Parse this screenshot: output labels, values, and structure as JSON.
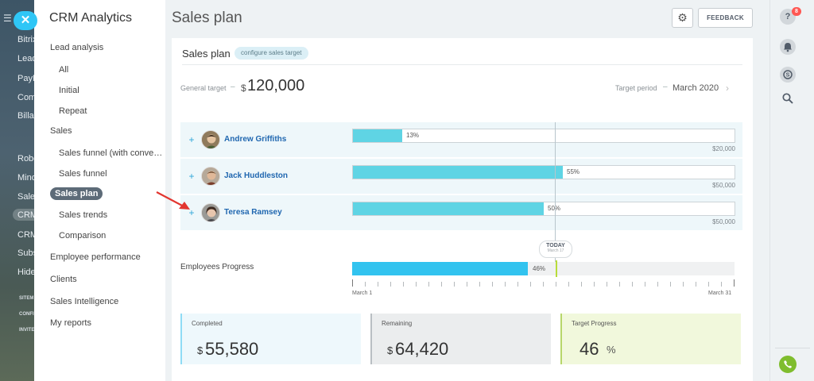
{
  "background": {
    "items": [
      "Bitrix",
      "Lead",
      "PayP",
      "Com",
      "Billa",
      "Robo",
      "Mino",
      "Sales",
      "CRM",
      "CRM",
      "Subs",
      "Hide"
    ],
    "small_items": [
      "SITEM",
      "CONFI",
      "INVITE"
    ]
  },
  "nav": {
    "title": "CRM Analytics",
    "items": [
      {
        "label": "Lead analysis",
        "level": "top"
      },
      {
        "label": "All",
        "level": "sub"
      },
      {
        "label": "Initial",
        "level": "sub"
      },
      {
        "label": "Repeat",
        "level": "sub"
      },
      {
        "label": "Sales",
        "level": "top"
      },
      {
        "label": "Sales funnel (with conve…",
        "level": "sub"
      },
      {
        "label": "Sales funnel",
        "level": "sub"
      },
      {
        "label": "Sales plan",
        "level": "active"
      },
      {
        "label": "Sales trends",
        "level": "sub"
      },
      {
        "label": "Comparison",
        "level": "sub"
      },
      {
        "label": "Employee performance",
        "level": "top"
      },
      {
        "label": "Clients",
        "level": "top"
      },
      {
        "label": "Sales Intelligence",
        "level": "top"
      },
      {
        "label": "My reports",
        "level": "top"
      }
    ]
  },
  "header": {
    "title": "Sales plan",
    "feedback_label": "FEEDBACK"
  },
  "card": {
    "title": "Sales plan",
    "configure_label": "configure sales target",
    "general_target_label": "General target",
    "general_target_currency": "$",
    "general_target_value": "120,000",
    "target_period_label": "Target period",
    "target_period_value": "March 2020"
  },
  "employees": [
    {
      "name": "Andrew Griffiths",
      "percent": 13,
      "percent_label": "13%",
      "target": "$20,000"
    },
    {
      "name": "Jack Huddleston",
      "percent": 55,
      "percent_label": "55%",
      "target": "$50,000"
    },
    {
      "name": "Teresa Ramsey",
      "percent": 50,
      "percent_label": "50%",
      "target": "$50,000"
    }
  ],
  "progress": {
    "label": "Employees Progress",
    "today_label": "TODAY",
    "today_date": "March 17",
    "percent": 46,
    "percent_label": "46%",
    "today_fraction": 0.533,
    "start_label": "March 1",
    "end_label": "March 31",
    "days": 31
  },
  "summary": {
    "completed_label": "Completed",
    "completed_currency": "$",
    "completed_value": "55,580",
    "remaining_label": "Remaining",
    "remaining_currency": "$",
    "remaining_value": "64,420",
    "progress_label": "Target Progress",
    "progress_value": "46",
    "progress_unit": "%"
  },
  "rail": {
    "help_badge": "8"
  },
  "colors": {
    "accent": "#2fc6f6",
    "bar_fill": "#5fd4e4",
    "progress_fill": "#32c3ef",
    "today_marker": "#b8dc3a",
    "phone": "#7fbd2e"
  }
}
